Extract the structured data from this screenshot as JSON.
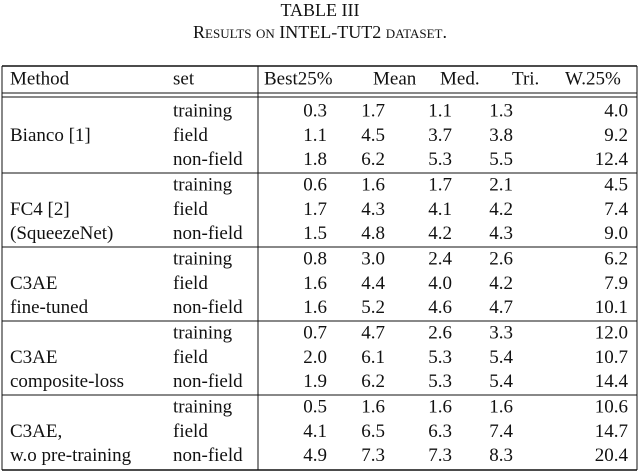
{
  "title": "TABLE III",
  "caption": "Results on INTEL-TUT2 dataset.",
  "table": {
    "header": [
      "Method",
      "set",
      "Best25%",
      "Mean",
      "Med.",
      "Tri.",
      "W.25%"
    ],
    "groups": [
      {
        "method": [
          "Bianco [1]"
        ],
        "rows": [
          [
            "training",
            "0.3",
            "1.7",
            "1.1",
            "1.3",
            "4.0"
          ],
          [
            "field",
            "1.1",
            "4.5",
            "3.7",
            "3.8",
            "9.2"
          ],
          [
            "non-field",
            "1.8",
            "6.2",
            "5.3",
            "5.5",
            "12.4"
          ]
        ]
      },
      {
        "method": [
          "FC4 [2]",
          "(SqueezeNet)"
        ],
        "rows": [
          [
            "training",
            "0.6",
            "1.6",
            "1.7",
            "2.1",
            "4.5"
          ],
          [
            "field",
            "1.7",
            "4.3",
            "4.1",
            "4.2",
            "7.4"
          ],
          [
            "non-field",
            "1.5",
            "4.8",
            "4.2",
            "4.3",
            "9.0"
          ]
        ]
      },
      {
        "method": [
          "C3AE",
          "fine-tuned"
        ],
        "rows": [
          [
            "training",
            "0.8",
            "3.0",
            "2.4",
            "2.6",
            "6.2"
          ],
          [
            "field",
            "1.6",
            "4.4",
            "4.0",
            "4.2",
            "7.9"
          ],
          [
            "non-field",
            "1.6",
            "5.2",
            "4.6",
            "4.7",
            "10.1"
          ]
        ]
      },
      {
        "method": [
          "C3AE",
          "composite-loss"
        ],
        "rows": [
          [
            "training",
            "0.7",
            "4.7",
            "2.6",
            "3.3",
            "12.0"
          ],
          [
            "field",
            "2.0",
            "6.1",
            "5.3",
            "5.4",
            "10.7"
          ],
          [
            "non-field",
            "1.9",
            "6.2",
            "5.3",
            "5.4",
            "14.4"
          ]
        ]
      },
      {
        "method": [
          "C3AE,",
          "w.o pre-training"
        ],
        "rows": [
          [
            "training",
            "0.5",
            "1.6",
            "1.6",
            "1.6",
            "10.6"
          ],
          [
            "field",
            "4.1",
            "6.5",
            "6.3",
            "7.4",
            "14.7"
          ],
          [
            "non-field",
            "4.9",
            "7.3",
            "7.3",
            "8.3",
            "20.4"
          ]
        ]
      }
    ]
  }
}
